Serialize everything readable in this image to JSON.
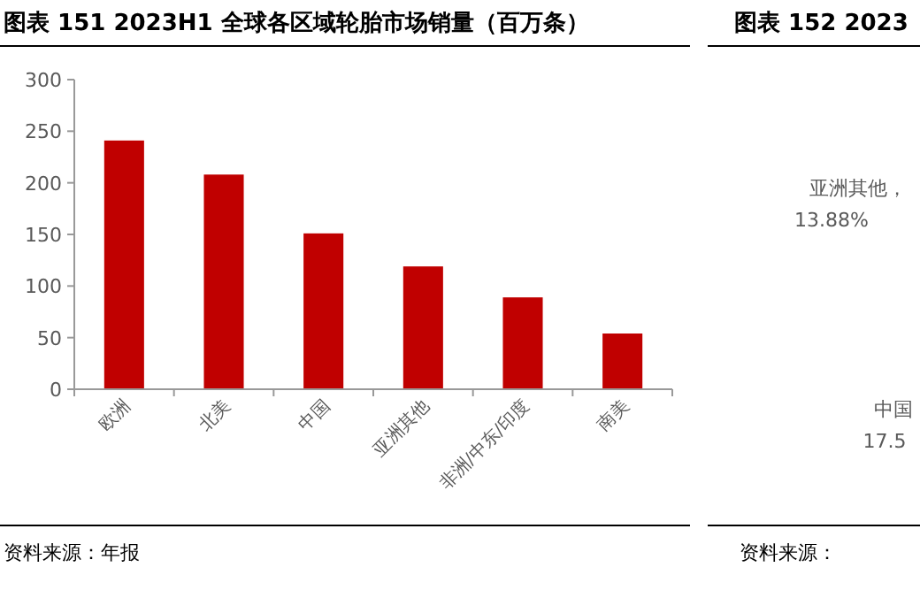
{
  "chart_data": [
    {
      "type": "bar",
      "title": "图表 151 2023H1 全球各区域轮胎市场销量（百万条）",
      "categories": [
        "欧洲",
        "北美",
        "中国",
        "亚洲其他",
        "非洲/中东/印度",
        "南美"
      ],
      "values": [
        241,
        208,
        151,
        119,
        89,
        54
      ],
      "color": "#c00000",
      "ylim": [
        0,
        300
      ],
      "yticks": [
        0,
        50,
        100,
        150,
        200,
        250,
        300
      ],
      "grid": false,
      "annotations": [
        "资料来源：年报"
      ]
    },
    {
      "type": "other",
      "title": "图表 152 2023",
      "annotations": [
        "亚洲其他，",
        "13.88%",
        "中国",
        "17.5",
        "资料来源："
      ]
    }
  ]
}
